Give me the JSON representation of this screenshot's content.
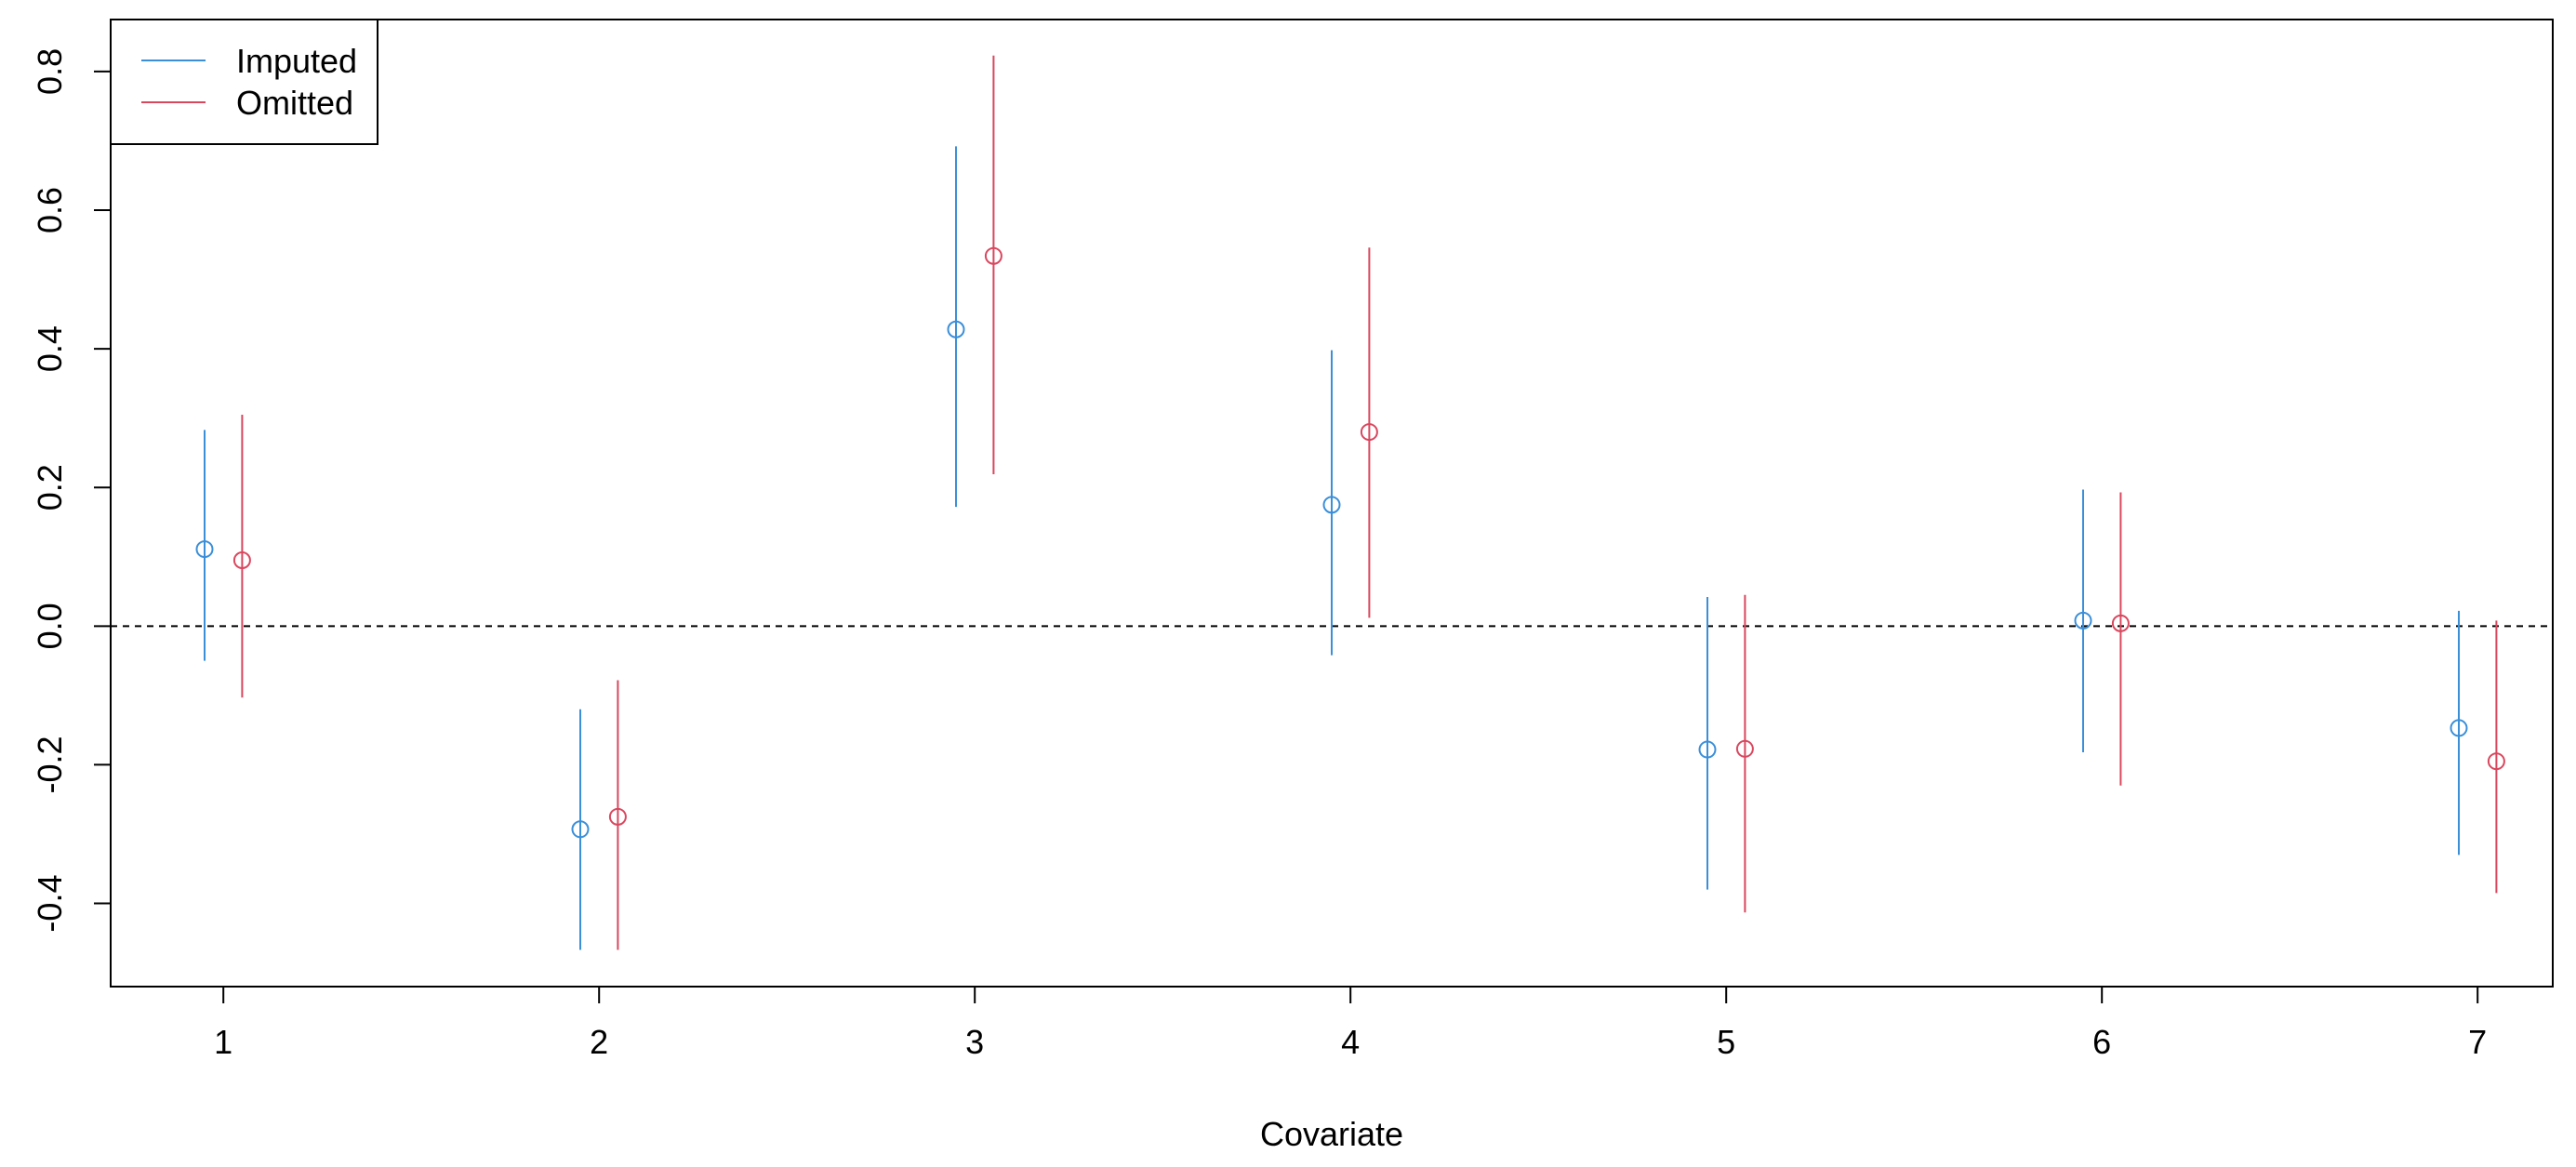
{
  "chart_data": {
    "type": "errorbar",
    "xlabel": "Covariate",
    "ylabel": "",
    "categories": [
      "1",
      "2",
      "3",
      "4",
      "5",
      "6",
      "7"
    ],
    "xlim": [
      0.7,
      7.2
    ],
    "ylim": [
      -0.52,
      0.875
    ],
    "yticks": [
      -0.4,
      -0.2,
      0.0,
      0.2,
      0.4,
      0.6,
      0.8
    ],
    "yticklabels": [
      "-0.4",
      "-0.2",
      "0.0",
      "0.2",
      "0.4",
      "0.6",
      "0.8"
    ],
    "reference_line": {
      "y": 0.0,
      "style": "dashed",
      "color": "#000000"
    },
    "grid": false,
    "legend": {
      "position": "top-left",
      "entries": [
        "Imputed",
        "Omitted"
      ]
    },
    "series": [
      {
        "name": "Imputed",
        "color": "#3B8FD9",
        "x": [
          0.95,
          1.95,
          2.95,
          3.95,
          4.95,
          5.95,
          6.95
        ],
        "estimate": [
          0.111,
          -0.293,
          0.428,
          0.175,
          -0.178,
          0.008,
          -0.147
        ],
        "lower": [
          -0.05,
          -0.467,
          0.172,
          -0.042,
          -0.38,
          -0.182,
          -0.33
        ],
        "upper": [
          0.283,
          -0.12,
          0.692,
          0.398,
          0.042,
          0.197,
          0.022
        ]
      },
      {
        "name": "Omitted",
        "color": "#D9475E",
        "x": [
          1.05,
          2.05,
          3.05,
          4.05,
          5.05,
          6.05,
          7.05
        ],
        "estimate": [
          0.095,
          -0.275,
          0.534,
          0.28,
          -0.177,
          0.004,
          -0.195
        ],
        "lower": [
          -0.103,
          -0.467,
          0.219,
          0.012,
          -0.413,
          -0.23,
          -0.385
        ],
        "upper": [
          0.305,
          -0.078,
          0.823,
          0.546,
          0.045,
          0.193,
          0.008
        ]
      }
    ]
  }
}
